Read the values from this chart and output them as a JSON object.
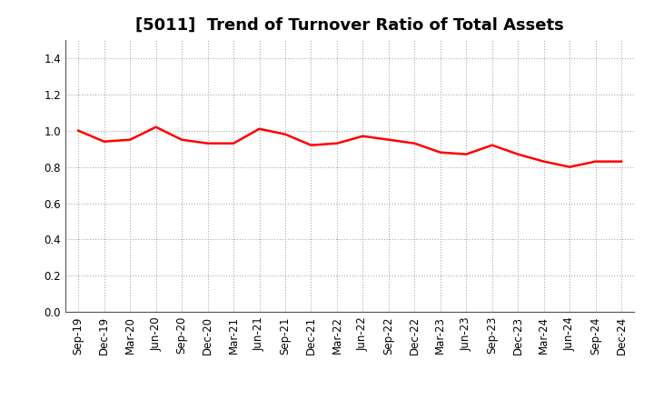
{
  "title": "[5011]  Trend of Turnover Ratio of Total Assets",
  "x_labels": [
    "Sep-19",
    "Dec-19",
    "Mar-20",
    "Jun-20",
    "Sep-20",
    "Dec-20",
    "Mar-21",
    "Jun-21",
    "Sep-21",
    "Dec-21",
    "Mar-22",
    "Jun-22",
    "Sep-22",
    "Dec-22",
    "Mar-23",
    "Jun-23",
    "Sep-23",
    "Dec-23",
    "Mar-24",
    "Jun-24",
    "Sep-24",
    "Dec-24"
  ],
  "y_values": [
    1.0,
    0.94,
    0.95,
    1.02,
    0.95,
    0.93,
    0.93,
    1.01,
    0.98,
    0.92,
    0.93,
    0.97,
    0.95,
    0.93,
    0.88,
    0.87,
    0.92,
    0.87,
    0.83,
    0.8,
    0.83,
    0.83
  ],
  "line_color": "#ff0000",
  "line_width": 1.8,
  "ylim": [
    0.0,
    1.5
  ],
  "yticks": [
    0.0,
    0.2,
    0.4,
    0.6,
    0.8,
    1.0,
    1.2,
    1.4
  ],
  "grid_color": "#aaaaaa",
  "background_color": "#ffffff",
  "title_fontsize": 13,
  "tick_fontsize": 8.5
}
